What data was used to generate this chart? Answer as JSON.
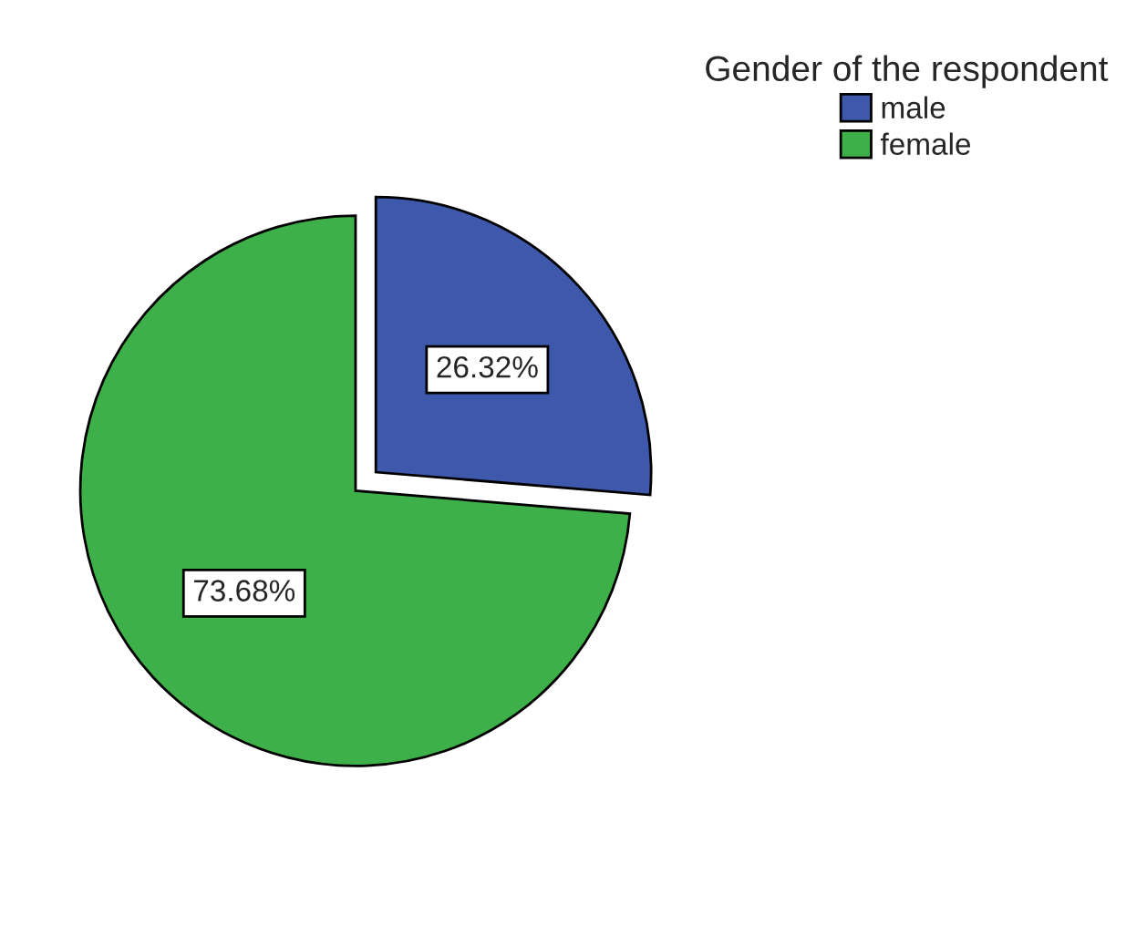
{
  "chart_data": {
    "type": "pie",
    "legend_title": "Gender of the respondent",
    "legend": "top right",
    "categories": [
      "male",
      "female"
    ],
    "values": [
      26.32,
      73.68
    ],
    "colors": [
      "#3e58ac",
      "#3eb049"
    ],
    "value_labels": [
      "26.32%",
      "73.68%"
    ]
  }
}
